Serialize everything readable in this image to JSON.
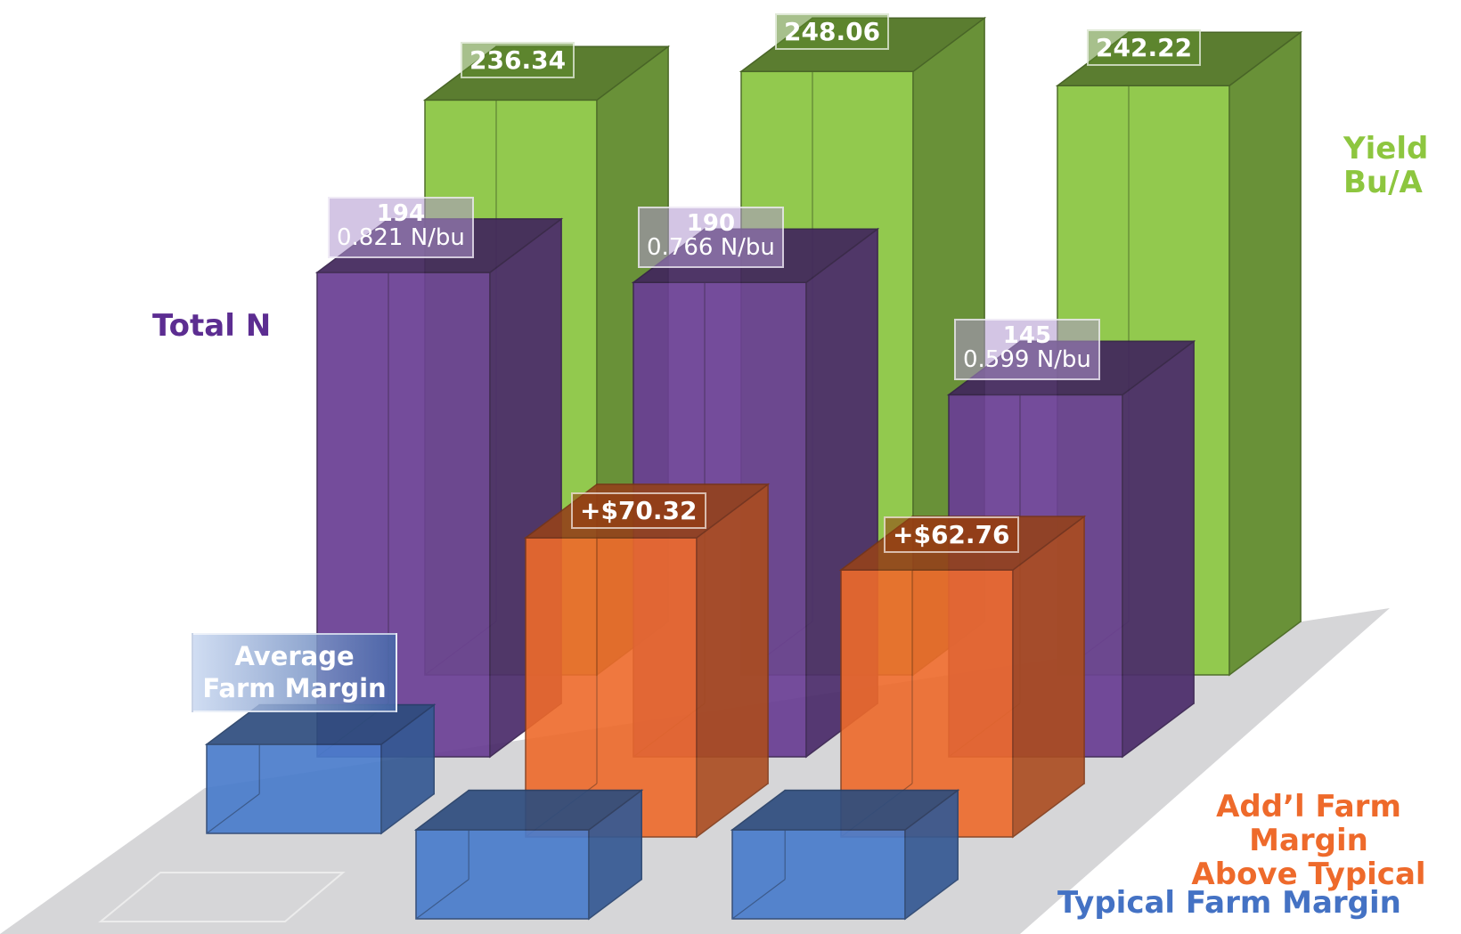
{
  "chart_data": {
    "type": "bar",
    "title": "",
    "series": [
      {
        "name": "Yield Bu/A",
        "values": [
          236.34,
          248.06,
          242.22
        ],
        "labels": [
          "236.34",
          "248.06",
          "242.22"
        ]
      },
      {
        "name": "Total N",
        "values": [
          194,
          190,
          145
        ],
        "labels": [
          "194",
          "190",
          "145"
        ],
        "sublabels": [
          "0.821 N/bu",
          "0.766 N/bu",
          "0.599 N/bu"
        ]
      },
      {
        "name": "Add’l Farm Margin Above Typical",
        "values": [
          null,
          70.32,
          62.76
        ],
        "labels": [
          "",
          "+$70.32",
          "+$62.76"
        ]
      },
      {
        "name": "Typical Farm Margin",
        "values": [
          null,
          null,
          null
        ],
        "labels": [
          "Average Farm Margin",
          "",
          ""
        ]
      }
    ]
  },
  "legend": {
    "yield": "Yield\nBu/A",
    "total_n": "Total N",
    "addl_margin": "Add’l Farm Margin\nAbove Typical",
    "typical_margin": "Typical Farm Margin"
  },
  "colors": {
    "yield": "#92c94e",
    "total_n": "#6a3f94",
    "addl_margin": "#ee6a2b",
    "typical_margin": "#4a7ccc",
    "yield_text": "#8dc63f",
    "total_n_text": "#5c2d91",
    "addl_text": "#ee6a2b",
    "typical_text": "#4472c4"
  }
}
